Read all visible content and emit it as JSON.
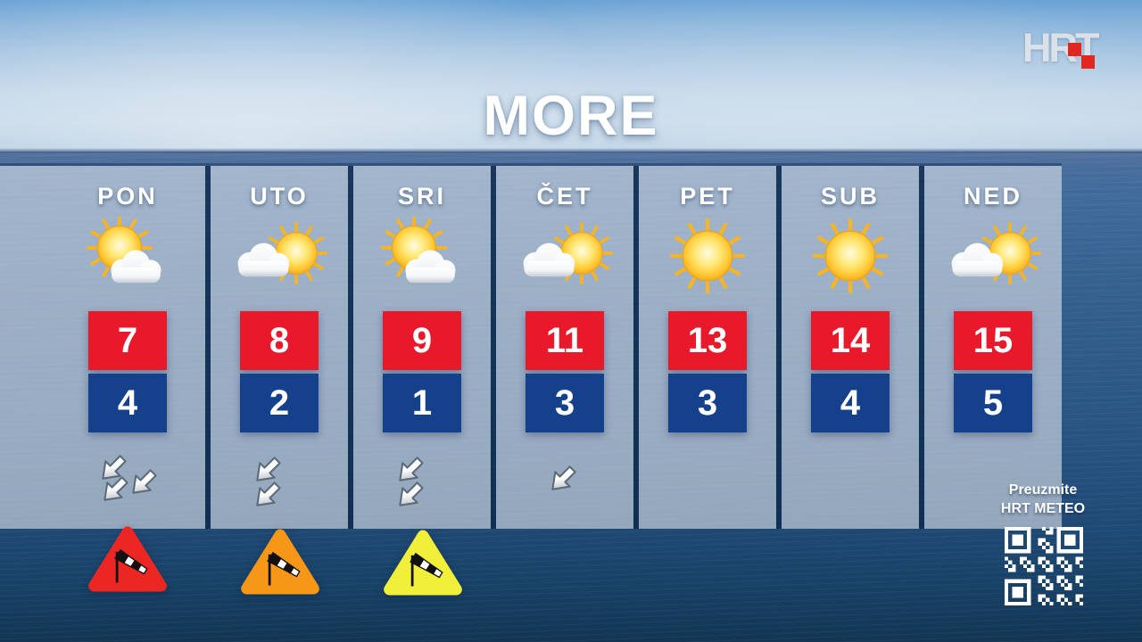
{
  "title": "MORE",
  "logo": {
    "text": "HRT"
  },
  "days": [
    {
      "label": "PON",
      "icon": "sun-with-cloud",
      "high": "7",
      "low": "4",
      "wind_arrows": 3,
      "warning": "red"
    },
    {
      "label": "UTO",
      "icon": "cloud-with-sun",
      "high": "8",
      "low": "2",
      "wind_arrows": 2,
      "warning": "orange"
    },
    {
      "label": "SRI",
      "icon": "sun-with-cloud",
      "high": "9",
      "low": "1",
      "wind_arrows": 2,
      "warning": "yellow"
    },
    {
      "label": "ČET",
      "icon": "cloud-with-sun",
      "high": "11",
      "low": "3",
      "wind_arrows": 1,
      "warning": "none"
    },
    {
      "label": "PET",
      "icon": "sunny",
      "high": "13",
      "low": "3",
      "wind_arrows": 0,
      "warning": "none"
    },
    {
      "label": "SUB",
      "icon": "sunny",
      "high": "14",
      "low": "4",
      "wind_arrows": 0,
      "warning": "none"
    },
    {
      "label": "NED",
      "icon": "cloud-with-sun",
      "high": "15",
      "low": "5",
      "wind_arrows": 0,
      "warning": "none"
    }
  ],
  "promo": {
    "line1": "Preuzmite",
    "line2": "HRT METEO"
  },
  "colors": {
    "temp_high_bg": "#e8192b",
    "temp_low_bg": "#15418c",
    "warning_red": "#ec2723",
    "warning_orange": "#f79717",
    "warning_yellow": "#f1ef3a",
    "divider": "#0d2849",
    "title_text": "#ffffff",
    "logo_red": "#e02720"
  }
}
